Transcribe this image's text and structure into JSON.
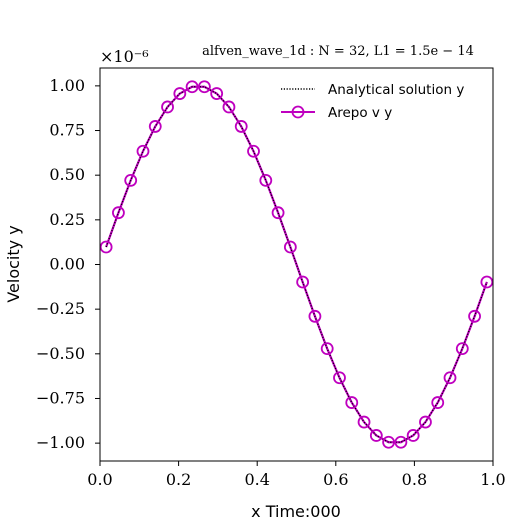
{
  "chart_data": {
    "type": "line",
    "title": "alfven_wave_1d : N = 32,  L1 = 1.5e − 14",
    "scale_label": "×10⁻⁶",
    "xlabel": "x  Time:000",
    "ylabel": "Velocity y",
    "xlim": [
      0.0,
      1.0
    ],
    "ylim": [
      -1.1,
      1.1
    ],
    "x_ticks": [
      0.0,
      0.2,
      0.4,
      0.6,
      0.8,
      1.0
    ],
    "x_tick_labels": [
      "0.0",
      "0.2",
      "0.4",
      "0.6",
      "0.8",
      "1.0"
    ],
    "y_ticks": [
      1.0,
      0.75,
      0.5,
      0.25,
      0.0,
      -0.25,
      -0.5,
      -0.75,
      -1.0
    ],
    "y_tick_labels": [
      "1.00",
      "0.75",
      "0.50",
      "0.25",
      "0.00",
      "−0.25",
      "−0.50",
      "−0.75",
      "−1.00"
    ],
    "legend_position": "top-right",
    "series": [
      {
        "name": "Analytical solution y",
        "style": "dotted",
        "color": "#000000",
        "x": [
          0.015625,
          0.046875,
          0.078125,
          0.109375,
          0.140625,
          0.171875,
          0.203125,
          0.234375,
          0.265625,
          0.296875,
          0.328125,
          0.359375,
          0.390625,
          0.421875,
          0.453125,
          0.484375,
          0.515625,
          0.546875,
          0.578125,
          0.609375,
          0.640625,
          0.671875,
          0.703125,
          0.734375,
          0.765625,
          0.796875,
          0.828125,
          0.859375,
          0.890625,
          0.921875,
          0.953125,
          0.984375
        ],
        "values": [
          0.098,
          0.29,
          0.471,
          0.634,
          0.773,
          0.882,
          0.957,
          0.995,
          0.995,
          0.957,
          0.882,
          0.773,
          0.634,
          0.471,
          0.29,
          0.098,
          -0.098,
          -0.29,
          -0.471,
          -0.634,
          -0.773,
          -0.882,
          -0.957,
          -0.995,
          -0.995,
          -0.957,
          -0.882,
          -0.773,
          -0.634,
          -0.471,
          -0.29,
          -0.098
        ]
      },
      {
        "name": "Arepo v y",
        "style": "solid-circle",
        "color": "#bf00bf",
        "x": [
          0.015625,
          0.046875,
          0.078125,
          0.109375,
          0.140625,
          0.171875,
          0.203125,
          0.234375,
          0.265625,
          0.296875,
          0.328125,
          0.359375,
          0.390625,
          0.421875,
          0.453125,
          0.484375,
          0.515625,
          0.546875,
          0.578125,
          0.609375,
          0.640625,
          0.671875,
          0.703125,
          0.734375,
          0.765625,
          0.796875,
          0.828125,
          0.859375,
          0.890625,
          0.921875,
          0.953125,
          0.984375
        ],
        "values": [
          0.098,
          0.29,
          0.471,
          0.634,
          0.773,
          0.882,
          0.957,
          0.995,
          0.995,
          0.957,
          0.882,
          0.773,
          0.634,
          0.471,
          0.29,
          0.098,
          -0.098,
          -0.29,
          -0.471,
          -0.634,
          -0.773,
          -0.882,
          -0.957,
          -0.995,
          -0.995,
          -0.957,
          -0.882,
          -0.773,
          -0.634,
          -0.471,
          -0.29,
          -0.098
        ]
      }
    ]
  }
}
